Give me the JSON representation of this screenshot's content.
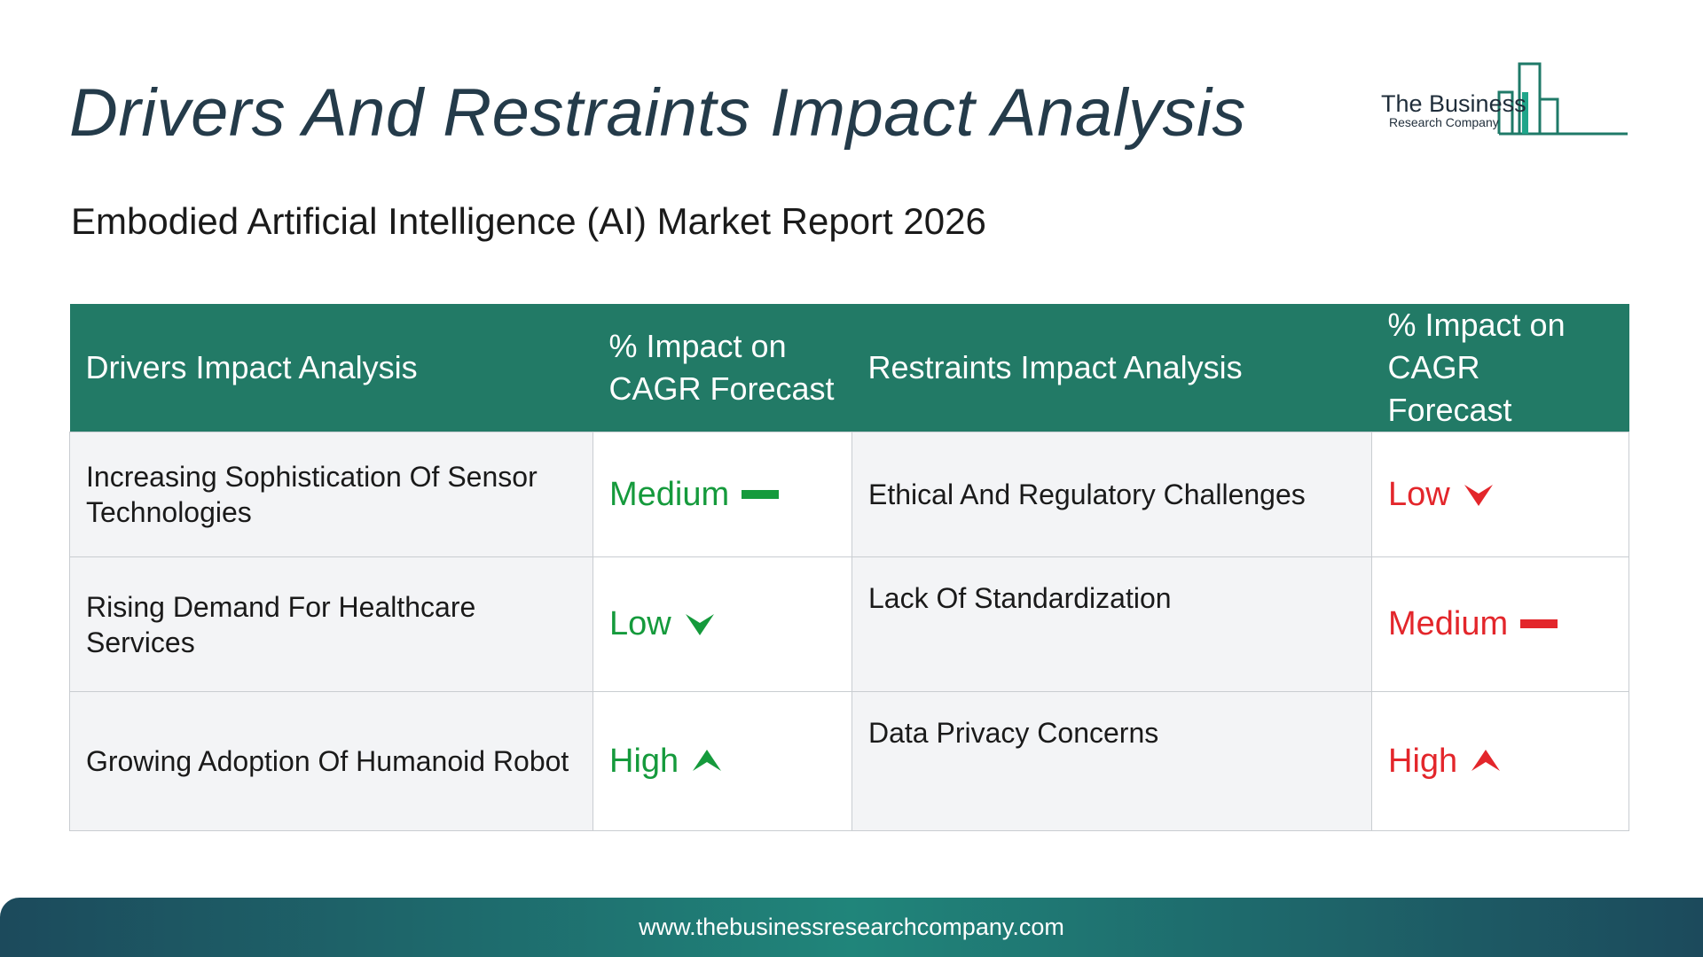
{
  "title": "Drivers And Restraints Impact Analysis",
  "subtitle": "Embodied Artificial Intelligence (AI) Market Report 2026",
  "logo": {
    "line1": "The Business",
    "line2": "Research Company"
  },
  "table": {
    "headers": [
      "Drivers Impact Analysis",
      "% Impact on CAGR Forecast",
      "Restraints Impact Analysis",
      "% Impact on CAGR Forecast"
    ],
    "rows": [
      {
        "driver": "Increasing Sophistication Of Sensor Technologies",
        "driver_impact": "Medium",
        "restraint": "Ethical And Regulatory Challenges",
        "restraint_impact": "Low"
      },
      {
        "driver": "Rising Demand For Healthcare Services",
        "driver_impact": "Low",
        "restraint": "Lack Of Standardization",
        "restraint_impact": "Medium"
      },
      {
        "driver": "Growing Adoption Of Humanoid Robot",
        "driver_impact": "High",
        "restraint": "Data Privacy Concerns",
        "restraint_impact": "High"
      }
    ]
  },
  "colors": {
    "header_bg": "#227a66",
    "driver": "#159a3c",
    "restraint": "#e3262b"
  },
  "icons": {
    "Medium": "dash-icon",
    "Low": "chevron-down-icon",
    "High": "chevron-up-icon"
  },
  "footer": {
    "url": "www.thebusinessresearchcompany.com"
  }
}
